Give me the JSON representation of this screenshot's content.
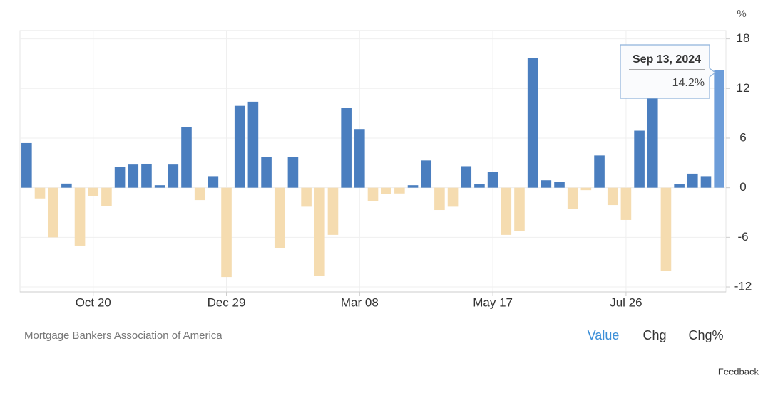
{
  "chart_data": {
    "type": "bar",
    "unit": "%",
    "source": "Mortgage Bankers Association of America",
    "buttons": [
      "Value",
      "Chg",
      "Chg%"
    ],
    "active_button": "Value",
    "feedback": "Feedback",
    "tooltip_title": "Sep 13, 2024",
    "categories": [
      null,
      null,
      null,
      null,
      null,
      "Oct 20",
      null,
      null,
      null,
      null,
      null,
      null,
      null,
      null,
      null,
      "Dec 29",
      null,
      null,
      null,
      null,
      null,
      null,
      null,
      null,
      null,
      "Mar 08",
      null,
      null,
      null,
      null,
      null,
      null,
      null,
      null,
      null,
      "May 17",
      null,
      null,
      null,
      null,
      null,
      null,
      null,
      null,
      null,
      "Jul 26",
      null,
      null,
      null,
      null,
      null,
      null,
      null
    ],
    "values": [
      5.4,
      -1.3,
      -6,
      0.5,
      -7,
      -1,
      -2.2,
      2.5,
      2.8,
      2.9,
      0.3,
      2.8,
      7.3,
      -1.5,
      1.4,
      -10.8,
      9.9,
      10.4,
      3.7,
      -7.3,
      3.7,
      -2.3,
      -10.7,
      -5.7,
      9.7,
      7.1,
      -1.6,
      -0.8,
      -0.7,
      0.3,
      3.3,
      -2.7,
      -2.3,
      2.6,
      0.4,
      1.9,
      -5.7,
      -5.2,
      15.7,
      0.9,
      0.7,
      -2.6,
      -0.3,
      3.9,
      -2.1,
      -3.9,
      6.9,
      10.9,
      -10.1,
      0.4,
      1.7,
      1.4,
      14.2
    ],
    "value_labels": [
      null,
      null,
      null,
      null,
      null,
      null,
      null,
      null,
      null,
      null,
      null,
      null,
      null,
      null,
      null,
      null,
      null,
      null,
      null,
      null,
      null,
      null,
      null,
      null,
      null,
      null,
      null,
      null,
      null,
      null,
      null,
      null,
      null,
      null,
      null,
      null,
      null,
      null,
      null,
      null,
      null,
      null,
      null,
      null,
      null,
      null,
      null,
      null,
      null,
      null,
      null,
      null,
      "14.2%"
    ],
    "color_positive": "#4a7ebf",
    "color_negative": "#f5dcb0",
    "color_highlight": "#6d9dd9",
    "ylim": [
      -12.6,
      19
    ],
    "yticks": [
      -12,
      -6,
      0,
      6,
      12,
      18
    ],
    "grid": true
  }
}
